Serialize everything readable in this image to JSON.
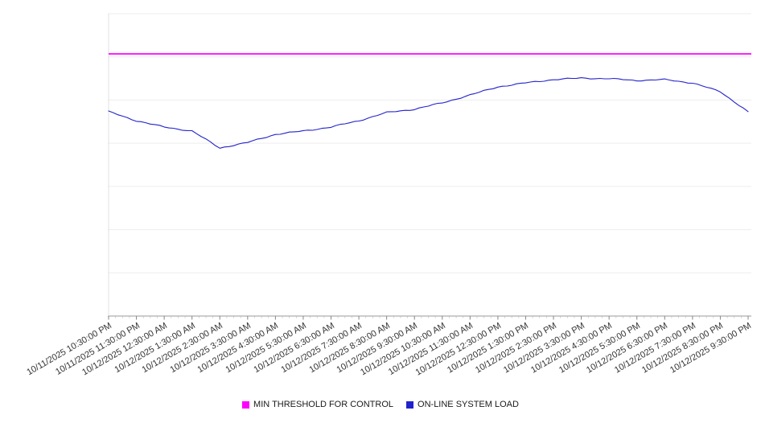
{
  "chart_data": {
    "type": "line",
    "title": "",
    "x_type": "datetime",
    "categories": [
      "10/11/2025 10:30:00 PM",
      "10/11/2025 11:30:00 PM",
      "10/12/2025 12:30:00 AM",
      "10/12/2025 1:30:00 AM",
      "10/12/2025 2:30:00 AM",
      "10/12/2025 3:30:00 AM",
      "10/12/2025 4:30:00 AM",
      "10/12/2025 5:30:00 AM",
      "10/12/2025 6:30:00 AM",
      "10/12/2025 7:30:00 AM",
      "10/12/2025 8:30:00 AM",
      "10/12/2025 9:30:00 AM",
      "10/12/2025 10:30:00 AM",
      "10/12/2025 11:30:00 AM",
      "10/12/2025 12:30:00 PM",
      "10/12/2025 1:30:00 PM",
      "10/12/2025 2:30:00 PM",
      "10/12/2025 3:30:00 PM",
      "10/12/2025 4:30:00 PM",
      "10/12/2025 5:30:00 PM",
      "10/12/2025 6:30:00 PM",
      "10/12/2025 7:30:00 PM",
      "10/12/2025 8:30:00 PM",
      "10/12/2025 9:30:00 PM"
    ],
    "series": [
      {
        "name": "MIN THRESHOLD FOR CONTROL",
        "type": "constant-threshold",
        "color": "#ff00ff",
        "value": 86.7
      },
      {
        "name": "ON-LINE SYSTEM LOAD",
        "type": "line",
        "color": "#2222cc",
        "values": [
          67.6,
          64.6,
          62.5,
          61.2,
          55.6,
          57.4,
          60.1,
          61.2,
          62.5,
          64.6,
          67.3,
          68.4,
          70.5,
          73.1,
          75.8,
          77.1,
          78.2,
          78.7,
          78.5,
          77.9,
          78.2,
          77.1,
          74.2,
          67.6
        ]
      }
    ],
    "ylim": [
      0,
      100
    ],
    "y_units": "unlabeled (values normalized 0-100, estimated from plot)",
    "y_axis_labels_visible": false,
    "grid": "horizontal",
    "legend_position": "bottom",
    "x_label_rotation_deg": -30
  }
}
